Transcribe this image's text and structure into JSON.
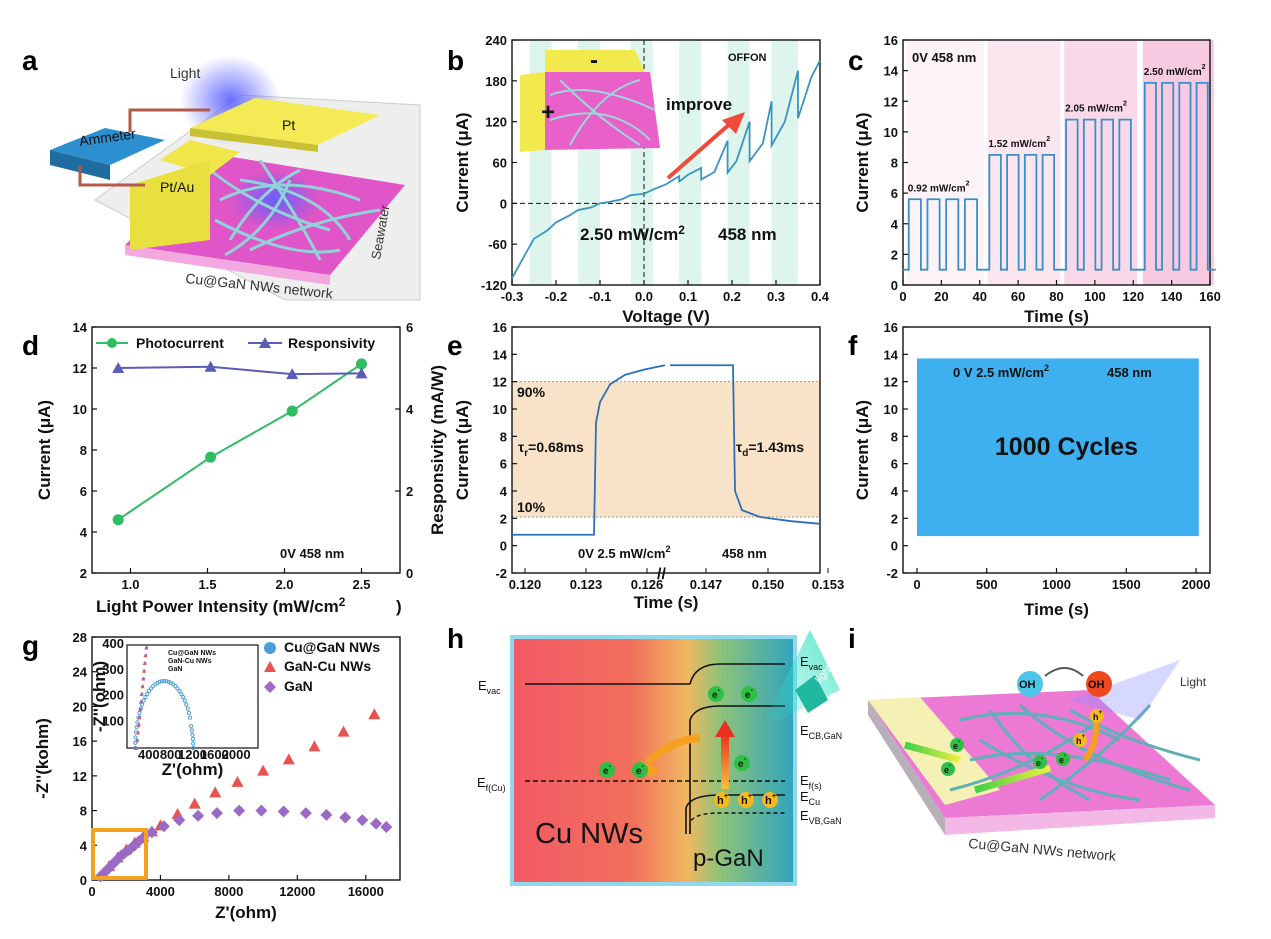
{
  "panels": {
    "a": {
      "label": "a",
      "texts": {
        "light": "Light",
        "ammeter": "Ammeter",
        "pt": "Pt",
        "ptau": "Pt/Au",
        "seawater": "Seawater",
        "network": "Cu@GaN NWs network"
      }
    },
    "h": {
      "label": "h",
      "texts": {
        "evac_left": "E",
        "evac_left_sub": "vac",
        "ef_left": "E",
        "ef_left_sub": "f(Cu)",
        "evac_right": "E",
        "evac_right_sub": "vac",
        "ecb": "E",
        "ecb_sub": "CB,GaN",
        "efs": "E",
        "efs_sub": "f(s)",
        "ecu": "E",
        "ecu_sub": "Cu",
        "evb": "E",
        "evb_sub": "VB,GaN",
        "cu": "Cu NWs",
        "pgan": "p-GaN",
        "light": "light",
        "electron": "e",
        "hole": "h"
      }
    },
    "i": {
      "label": "i",
      "texts": {
        "oh": "OH",
        "oh_rad": "OH",
        "light": "Light",
        "network": "Cu@GaN NWs network",
        "electron": "e",
        "hole": "h"
      }
    }
  },
  "chart_data": [
    {
      "panel": "b",
      "type": "line",
      "xlabel": "Voltage (V)",
      "ylabel": "Current (μA)",
      "xlim": [
        -0.3,
        0.4
      ],
      "ylim": [
        -120,
        240
      ],
      "xticks": [
        "-0.3",
        "-0.2",
        "-0.1",
        "0.0",
        "0.1",
        "0.2",
        "0.3",
        "0.4"
      ],
      "yticks": [
        "-120",
        "-60",
        "0",
        "60",
        "120",
        "180",
        "240"
      ],
      "annotations": [
        "OFFON",
        "improve",
        "+",
        "-",
        "2.50 mW/cm",
        "2",
        "458 nm"
      ],
      "on_bands_v": [
        [
          -0.26,
          -0.21
        ],
        [
          -0.15,
          -0.1
        ],
        [
          -0.03,
          0.02
        ],
        [
          0.08,
          0.13
        ],
        [
          0.19,
          0.24
        ],
        [
          0.29,
          0.35
        ]
      ],
      "series": [
        {
          "x": [
            -0.3,
            -0.27,
            -0.25,
            -0.22,
            -0.2,
            -0.17,
            -0.15,
            -0.12,
            -0.1,
            -0.08,
            -0.05,
            -0.03,
            0.0,
            0.02,
            0.05,
            0.08,
            0.08,
            0.1,
            0.13,
            0.13,
            0.16,
            0.19,
            0.19,
            0.21,
            0.24,
            0.24,
            0.27,
            0.29,
            0.29,
            0.32,
            0.35,
            0.35,
            0.38,
            0.4
          ],
          "y": [
            -110,
            -75,
            -52,
            -40,
            -28,
            -18,
            -10,
            -6,
            0,
            2,
            6,
            12,
            14,
            20,
            28,
            40,
            32,
            42,
            52,
            35,
            46,
            92,
            45,
            62,
            120,
            62,
            88,
            150,
            85,
            120,
            195,
            125,
            185,
            210
          ]
        }
      ]
    },
    {
      "panel": "c",
      "type": "line",
      "xlabel": "Time (s)",
      "ylabel": "Current (μA)",
      "xlim": [
        0,
        160
      ],
      "ylim": [
        0,
        16
      ],
      "xticks": [
        "0",
        "20",
        "40",
        "60",
        "80",
        "100",
        "120",
        "140",
        "160"
      ],
      "yticks": [
        "0",
        "2",
        "4",
        "6",
        "8",
        "10",
        "12",
        "14",
        "16"
      ],
      "annotations": [
        "0V    458 nm"
      ],
      "groups": [
        {
          "label": "0.92 mW/cm",
          "sup": "2",
          "on": 5.6,
          "start": 3,
          "end": 42
        },
        {
          "label": "1.52 mW/cm",
          "sup": "2",
          "on": 8.5,
          "start": 45,
          "end": 82
        },
        {
          "label": "2.05 mW/cm",
          "sup": "2",
          "on": 10.8,
          "start": 85,
          "end": 122
        },
        {
          "label": "2.50 mW/cm",
          "sup": "2",
          "on": 13.2,
          "start": 126,
          "end": 162
        }
      ],
      "off_level": 1.0
    },
    {
      "panel": "d",
      "type": "line",
      "xlabel": "Light Power Intensity (mW/cm",
      "xlabel_sup": "2",
      "xlabel_end": ")",
      "ylabel": "Current (μA)",
      "y2label": "Responsivity (mA/W)",
      "xlim": [
        0.75,
        2.75
      ],
      "ylim": [
        2,
        14
      ],
      "y2lim": [
        0,
        6
      ],
      "xticks": [
        "1.0",
        "1.5",
        "2.0",
        "2.5"
      ],
      "yticks": [
        "2",
        "4",
        "6",
        "8",
        "10",
        "12",
        "14"
      ],
      "y2ticks": [
        "0",
        "2",
        "4",
        "6"
      ],
      "annotations": [
        "0V     458 nm"
      ],
      "series": [
        {
          "name": "Photocurrent",
          "x": [
            0.92,
            1.52,
            2.05,
            2.5
          ],
          "y": [
            4.6,
            7.65,
            9.9,
            12.2
          ],
          "axis": "left",
          "color": "#2ebd60"
        },
        {
          "name": "Responsivity",
          "x": [
            0.92,
            1.52,
            2.05,
            2.5
          ],
          "y": [
            5.0,
            5.03,
            4.85,
            4.87
          ],
          "axis": "right",
          "color": "#5b5bb8"
        }
      ]
    },
    {
      "panel": "e",
      "type": "line",
      "xlabel": "Time (s)",
      "ylabel": "Current (μA)",
      "ylim": [
        -2,
        16
      ],
      "xticks": [
        "0.120",
        "0.123",
        "0.126",
        "0.147",
        "0.150",
        "0.153"
      ],
      "yticks": [
        "-2",
        "0",
        "2",
        "4",
        "6",
        "8",
        "10",
        "12",
        "14",
        "16"
      ],
      "annotations": [
        "90%",
        "10%",
        "τ",
        "r",
        "=0.68ms",
        "τ",
        "d",
        "=1.43ms",
        "0V   2.5 mW/cm",
        "2",
        "   458 nm"
      ],
      "band_levels": [
        2.1,
        12.0
      ],
      "low_level": 0.8,
      "high_level": 13.2
    },
    {
      "panel": "f",
      "type": "area",
      "xlabel": "Time (s)",
      "ylabel": "Current (μA)",
      "xlim": [
        -100,
        2100
      ],
      "ylim": [
        -2,
        16
      ],
      "xticks": [
        "0",
        "500",
        "1000",
        "1500",
        "2000"
      ],
      "yticks": [
        "-2",
        "0",
        "2",
        "4",
        "6",
        "8",
        "10",
        "12",
        "14",
        "16"
      ],
      "annotations": [
        "0 V      2.5 mW/cm",
        "2",
        "      458 nm",
        "1000 Cycles"
      ],
      "band": [
        0.7,
        13.7
      ]
    },
    {
      "panel": "g",
      "type": "scatter",
      "xlabel": "Z'(ohm)",
      "ylabel": "-Z''(kohm)",
      "xlim": [
        0,
        18000
      ],
      "ylim": [
        0,
        28
      ],
      "xticks": [
        "0",
        "4000",
        "8000",
        "12000",
        "16000"
      ],
      "yticks": [
        "0",
        "4",
        "8",
        "12",
        "16",
        "20",
        "24",
        "28"
      ],
      "series": [
        {
          "name": "Cu@GaN NWs",
          "marker": "circle",
          "color": "#4a9fd8",
          "x": [],
          "y": []
        },
        {
          "name": "GaN-Cu NWs",
          "marker": "triangle",
          "color": "#e8524f",
          "x": [
            1000,
            1500,
            2000,
            2500,
            3000,
            3500,
            4000,
            5000,
            6000,
            7200,
            8500,
            10000,
            11500,
            13000,
            14700,
            16500
          ],
          "y": [
            1.6,
            2.6,
            3.5,
            4.3,
            5.0,
            5.6,
            6.3,
            7.6,
            8.8,
            10.1,
            11.3,
            12.6,
            13.9,
            15.4,
            17.1,
            19.1
          ]
        },
        {
          "name": "GaN",
          "marker": "diamond",
          "color": "#9a6ac6",
          "x": [
            500,
            700,
            900,
            1100,
            1300,
            1500,
            1700,
            1900,
            2100,
            2300,
            2500,
            2700,
            3000,
            3500,
            4200,
            5100,
            6200,
            7300,
            8600,
            9900,
            11200,
            12500,
            13700,
            14800,
            15800,
            16600,
            17200
          ],
          "y": [
            0.4,
            0.8,
            1.2,
            1.6,
            2.0,
            2.4,
            2.8,
            3.1,
            3.4,
            3.7,
            4.0,
            4.4,
            4.9,
            5.5,
            6.2,
            6.9,
            7.4,
            7.7,
            8.0,
            8.0,
            7.9,
            7.7,
            7.5,
            7.2,
            6.9,
            6.5,
            6.1
          ]
        }
      ],
      "inset": {
        "xlabel": "Z'(ohm)",
        "ylabel": "-Z''(ohm)",
        "xlim": [
          0,
          2400
        ],
        "ylim": [
          0,
          400
        ],
        "xticks": [
          "400",
          "800",
          "1200",
          "1600",
          "2000"
        ],
        "yticks": [
          "100",
          "200",
          "300",
          "400"
        ],
        "legend": [
          "Cu@GaN NWs",
          "GaN-Cu NWs",
          "GaN"
        ]
      }
    }
  ]
}
